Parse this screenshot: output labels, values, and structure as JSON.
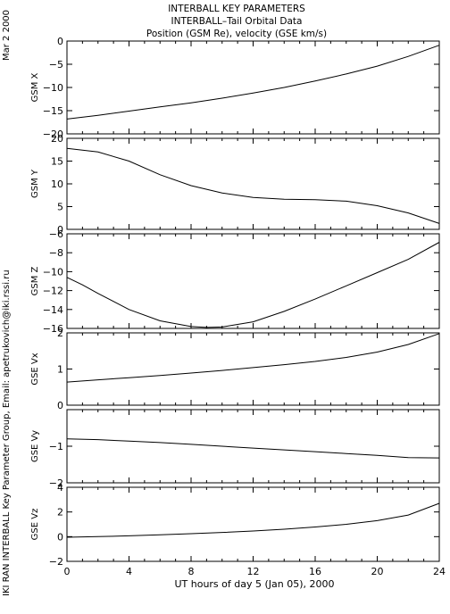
{
  "header": {
    "date_stamp": "Mar  2 2000",
    "title_lines": [
      "INTERBALL KEY PARAMETERS",
      "INTERBALL–Tail Orbital Data",
      "Position (GSM Re), velocity (GSE km/s)"
    ]
  },
  "side_credit": "IKI RAN INTERBALL Key Parameter Group, Email: apetrukovich@iki.rssi.ru",
  "chart_data": {
    "type": "line",
    "xlabel": "UT hours of day   5 (Jan 05), 2000",
    "x_ticks": [
      "0",
      "4",
      "8",
      "12",
      "16",
      "20",
      "24"
    ],
    "xlim": [
      0,
      24
    ],
    "grid": false,
    "panels": [
      {
        "ylabel": "GSM X",
        "ylim": [
          -20,
          0
        ],
        "y_ticks": [
          "0",
          "−5",
          "−10",
          "−15",
          "−20"
        ],
        "y_tick_values": [
          0,
          -5,
          -10,
          -15,
          -20
        ],
        "series": [
          {
            "x": [
              0,
              2,
              4,
              6,
              8,
              10,
              12,
              14,
              16,
              18,
              20,
              22,
              24
            ],
            "y": [
              -16.8,
              -16.0,
              -15.1,
              -14.2,
              -13.3,
              -12.3,
              -11.2,
              -10.0,
              -8.6,
              -7.1,
              -5.4,
              -3.3,
              -0.9
            ]
          }
        ]
      },
      {
        "ylabel": "GSM Y",
        "ylim": [
          0,
          20
        ],
        "y_ticks": [
          "20",
          "15",
          "10",
          "5",
          "0"
        ],
        "y_tick_values": [
          20,
          15,
          10,
          5,
          0
        ],
        "series": [
          {
            "x": [
              0,
              2,
              4,
              6,
              8,
              10,
              12,
              14,
              16,
              18,
              20,
              22,
              24
            ],
            "y": [
              17.8,
              17.0,
              15.0,
              12.0,
              9.6,
              8.0,
              7.0,
              6.6,
              6.5,
              6.2,
              5.2,
              3.6,
              1.3
            ]
          }
        ]
      },
      {
        "ylabel": "GSM Z",
        "ylim": [
          -16,
          -6
        ],
        "y_ticks": [
          "−6",
          "−8",
          "−10",
          "−12",
          "−14",
          "−16"
        ],
        "y_tick_values": [
          -6,
          -8,
          -10,
          -12,
          -14,
          -16
        ],
        "series": [
          {
            "x": [
              0,
              1,
              2,
              4,
              6,
              8,
              9,
              10,
              12,
              14,
              16,
              18,
              20,
              22,
              24
            ],
            "y": [
              -10.6,
              -11.4,
              -12.3,
              -14.0,
              -15.2,
              -15.8,
              -15.9,
              -15.85,
              -15.3,
              -14.2,
              -12.9,
              -11.5,
              -10.1,
              -8.7,
              -6.9
            ]
          }
        ]
      },
      {
        "ylabel": "GSE Vx",
        "ylim": [
          0,
          2
        ],
        "y_ticks": [
          "2",
          "1",
          "0"
        ],
        "y_tick_values": [
          2,
          1,
          0
        ],
        "series": [
          {
            "x": [
              0,
              2,
              4,
              6,
              8,
              10,
              12,
              14,
              16,
              18,
              20,
              22,
              24
            ],
            "y": [
              0.64,
              0.7,
              0.76,
              0.82,
              0.89,
              0.96,
              1.04,
              1.12,
              1.21,
              1.32,
              1.47,
              1.68,
              1.98
            ]
          }
        ]
      },
      {
        "ylabel": "GSE Vy",
        "ylim": [
          -2,
          0
        ],
        "y_ticks": [
          "−1",
          "−2"
        ],
        "y_tick_values": [
          -1,
          -2
        ],
        "series": [
          {
            "x": [
              0,
              2,
              4,
              6,
              8,
              10,
              12,
              14,
              16,
              18,
              20,
              22,
              24
            ],
            "y": [
              -0.8,
              -0.82,
              -0.86,
              -0.9,
              -0.95,
              -1.0,
              -1.05,
              -1.1,
              -1.15,
              -1.2,
              -1.25,
              -1.31,
              -1.32
            ]
          }
        ]
      },
      {
        "ylabel": "GSE Vz",
        "ylim": [
          -2,
          4
        ],
        "y_ticks": [
          "4",
          "2",
          "0",
          "−2"
        ],
        "y_tick_values": [
          4,
          2,
          0,
          -2
        ],
        "series": [
          {
            "x": [
              0,
              2,
              4,
              6,
              8,
              10,
              12,
              14,
              16,
              18,
              20,
              22,
              24
            ],
            "y": [
              -0.05,
              0.0,
              0.07,
              0.15,
              0.24,
              0.34,
              0.46,
              0.6,
              0.78,
              1.0,
              1.3,
              1.75,
              2.7
            ]
          }
        ]
      }
    ]
  }
}
